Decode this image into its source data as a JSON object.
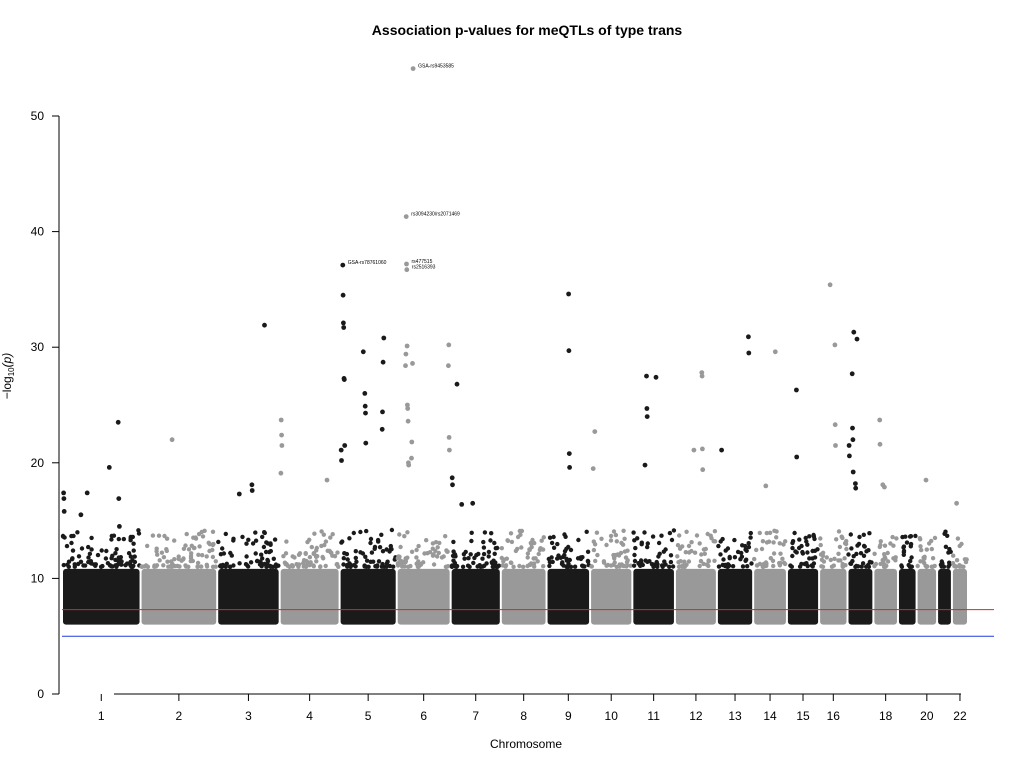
{
  "chart_data": {
    "type": "scatter",
    "title": "Association p-values for meQTLs of type trans",
    "xlabel": "Chromosome",
    "ylabel": "−log",
    "ylabel_sub": "10",
    "ylabel_suffix": "(p)",
    "ylim": [
      0,
      50
    ],
    "y_ticks": [
      0,
      10,
      20,
      30,
      40,
      50
    ],
    "x_tick_labels": [
      "1",
      "2",
      "3",
      "4",
      "5",
      "6",
      "7",
      "8",
      "9",
      "10",
      "11",
      "12",
      "13",
      "14",
      "15",
      "16",
      "18",
      "20",
      "22"
    ],
    "chromosomes": [
      {
        "chr": "1",
        "start": 0,
        "end": 249
      },
      {
        "chr": "2",
        "start": 249,
        "end": 492
      },
      {
        "chr": "3",
        "start": 492,
        "end": 690
      },
      {
        "chr": "4",
        "start": 690,
        "end": 880
      },
      {
        "chr": "5",
        "start": 880,
        "end": 1061
      },
      {
        "chr": "6",
        "start": 1061,
        "end": 1232
      },
      {
        "chr": "7",
        "start": 1232,
        "end": 1391
      },
      {
        "chr": "8",
        "start": 1391,
        "end": 1536
      },
      {
        "chr": "9",
        "start": 1536,
        "end": 1674
      },
      {
        "chr": "10",
        "start": 1674,
        "end": 1808
      },
      {
        "chr": "11",
        "start": 1808,
        "end": 1943
      },
      {
        "chr": "12",
        "start": 1943,
        "end": 2076
      },
      {
        "chr": "13",
        "start": 2076,
        "end": 2191
      },
      {
        "chr": "14",
        "start": 2191,
        "end": 2298
      },
      {
        "chr": "15",
        "start": 2298,
        "end": 2400
      },
      {
        "chr": "16",
        "start": 2400,
        "end": 2490
      },
      {
        "chr": "17",
        "start": 2490,
        "end": 2572
      },
      {
        "chr": "18",
        "start": 2572,
        "end": 2650
      },
      {
        "chr": "19",
        "start": 2650,
        "end": 2709
      },
      {
        "chr": "20",
        "start": 2709,
        "end": 2774
      },
      {
        "chr": "21",
        "start": 2774,
        "end": 2821
      },
      {
        "chr": "22",
        "start": 2821,
        "end": 2872
      }
    ],
    "bulk_ymin": 6,
    "bulk_ymax": 11,
    "colors": [
      "#1a1a1a",
      "#999999"
    ],
    "threshold_lines": [
      {
        "name": "genome-wide",
        "y": 7.3,
        "color": "#d62728"
      },
      {
        "name": "suggestive",
        "y": 5.0,
        "color": "#1f3fe0"
      }
    ],
    "top_hits": [
      {
        "chr": "1",
        "pos": 5,
        "p": 17.4
      },
      {
        "chr": "1",
        "pos": 6,
        "p": 16.9
      },
      {
        "chr": "1",
        "pos": 7,
        "p": 15.8
      },
      {
        "chr": "1",
        "pos": 60,
        "p": 15.5
      },
      {
        "chr": "1",
        "pos": 80,
        "p": 17.4
      },
      {
        "chr": "1",
        "pos": 150,
        "p": 19.6
      },
      {
        "chr": "1",
        "pos": 178,
        "p": 23.5
      },
      {
        "chr": "1",
        "pos": 180,
        "p": 16.9
      },
      {
        "chr": "1",
        "pos": 182,
        "p": 14.5
      },
      {
        "chr": "2",
        "pos": 100,
        "p": 22.0
      },
      {
        "chr": "3",
        "pos": 70,
        "p": 17.3
      },
      {
        "chr": "3",
        "pos": 110,
        "p": 18.1
      },
      {
        "chr": "3",
        "pos": 111,
        "p": 17.6
      },
      {
        "chr": "3",
        "pos": 150,
        "p": 31.9
      },
      {
        "chr": "4",
        "pos": 5,
        "p": 23.7
      },
      {
        "chr": "4",
        "pos": 6,
        "p": 22.4
      },
      {
        "chr": "4",
        "pos": 7,
        "p": 21.5
      },
      {
        "chr": "4",
        "pos": 4,
        "p": 19.1
      },
      {
        "chr": "4",
        "pos": 150,
        "p": 18.5
      },
      {
        "chr": "5",
        "pos": 10,
        "p": 37.1
      },
      {
        "chr": "5",
        "pos": 11,
        "p": 34.5
      },
      {
        "chr": "5",
        "pos": 12,
        "p": 32.1
      },
      {
        "chr": "5",
        "pos": 13,
        "p": 31.7
      },
      {
        "chr": "5",
        "pos": 14,
        "p": 27.3
      },
      {
        "chr": "5",
        "pos": 15,
        "p": 27.2
      },
      {
        "chr": "5",
        "pos": 16,
        "p": 21.5
      },
      {
        "chr": "5",
        "pos": 5,
        "p": 21.1
      },
      {
        "chr": "5",
        "pos": 6,
        "p": 20.2
      },
      {
        "chr": "5",
        "pos": 75,
        "p": 29.6
      },
      {
        "chr": "5",
        "pos": 80,
        "p": 26.0
      },
      {
        "chr": "5",
        "pos": 81,
        "p": 24.9
      },
      {
        "chr": "5",
        "pos": 82,
        "p": 24.3
      },
      {
        "chr": "5",
        "pos": 83,
        "p": 21.7
      },
      {
        "chr": "5",
        "pos": 140,
        "p": 30.8
      },
      {
        "chr": "5",
        "pos": 138,
        "p": 28.7
      },
      {
        "chr": "5",
        "pos": 136,
        "p": 24.4
      },
      {
        "chr": "5",
        "pos": 135,
        "p": 22.9
      },
      {
        "chr": "6",
        "pos": 30,
        "p": 41.3
      },
      {
        "chr": "6",
        "pos": 31,
        "p": 37.2
      },
      {
        "chr": "6",
        "pos": 32,
        "p": 36.7
      },
      {
        "chr": "6",
        "pos": 33,
        "p": 30.1
      },
      {
        "chr": "6",
        "pos": 29,
        "p": 29.4
      },
      {
        "chr": "6",
        "pos": 28,
        "p": 28.4
      },
      {
        "chr": "6",
        "pos": 34,
        "p": 25.0
      },
      {
        "chr": "6",
        "pos": 35,
        "p": 24.7
      },
      {
        "chr": "6",
        "pos": 36,
        "p": 23.6
      },
      {
        "chr": "6",
        "pos": 37,
        "p": 20.0
      },
      {
        "chr": "6",
        "pos": 38,
        "p": 19.8
      },
      {
        "chr": "6",
        "pos": 52,
        "p": 54.1
      },
      {
        "chr": "6",
        "pos": 50,
        "p": 28.6
      },
      {
        "chr": "6",
        "pos": 48,
        "p": 21.8
      },
      {
        "chr": "6",
        "pos": 47,
        "p": 20.4
      },
      {
        "chr": "6",
        "pos": 165,
        "p": 30.2
      },
      {
        "chr": "6",
        "pos": 164,
        "p": 28.4
      },
      {
        "chr": "6",
        "pos": 166,
        "p": 22.2
      },
      {
        "chr": "6",
        "pos": 167,
        "p": 21.1
      },
      {
        "chr": "7",
        "pos": 20,
        "p": 26.8
      },
      {
        "chr": "7",
        "pos": 5,
        "p": 18.7
      },
      {
        "chr": "7",
        "pos": 6,
        "p": 18.1
      },
      {
        "chr": "7",
        "pos": 35,
        "p": 16.4
      },
      {
        "chr": "7",
        "pos": 70,
        "p": 16.5
      },
      {
        "chr": "9",
        "pos": 70,
        "p": 34.6
      },
      {
        "chr": "9",
        "pos": 71,
        "p": 29.7
      },
      {
        "chr": "9",
        "pos": 72,
        "p": 20.8
      },
      {
        "chr": "9",
        "pos": 73,
        "p": 19.6
      },
      {
        "chr": "10",
        "pos": 15,
        "p": 22.7
      },
      {
        "chr": "10",
        "pos": 10,
        "p": 19.5
      },
      {
        "chr": "11",
        "pos": 45,
        "p": 27.5
      },
      {
        "chr": "11",
        "pos": 46,
        "p": 24.7
      },
      {
        "chr": "11",
        "pos": 47,
        "p": 24.0
      },
      {
        "chr": "11",
        "pos": 40,
        "p": 19.8
      },
      {
        "chr": "11",
        "pos": 75,
        "p": 27.4
      },
      {
        "chr": "12",
        "pos": 85,
        "p": 27.8
      },
      {
        "chr": "12",
        "pos": 86,
        "p": 27.5
      },
      {
        "chr": "12",
        "pos": 87,
        "p": 21.2
      },
      {
        "chr": "12",
        "pos": 88,
        "p": 19.4
      },
      {
        "chr": "12",
        "pos": 60,
        "p": 21.1
      },
      {
        "chr": "13",
        "pos": 15,
        "p": 21.1
      },
      {
        "chr": "13",
        "pos": 100,
        "p": 30.9
      },
      {
        "chr": "13",
        "pos": 101,
        "p": 29.5
      },
      {
        "chr": "14",
        "pos": 70,
        "p": 29.6
      },
      {
        "chr": "14",
        "pos": 40,
        "p": 18.0
      },
      {
        "chr": "15",
        "pos": 30,
        "p": 26.3
      },
      {
        "chr": "15",
        "pos": 31,
        "p": 20.5
      },
      {
        "chr": "16",
        "pos": 35,
        "p": 35.4
      },
      {
        "chr": "16",
        "pos": 50,
        "p": 30.2
      },
      {
        "chr": "16",
        "pos": 51,
        "p": 23.3
      },
      {
        "chr": "16",
        "pos": 52,
        "p": 21.5
      },
      {
        "chr": "17",
        "pos": 20,
        "p": 31.3
      },
      {
        "chr": "17",
        "pos": 30,
        "p": 30.7
      },
      {
        "chr": "17",
        "pos": 15,
        "p": 27.7
      },
      {
        "chr": "17",
        "pos": 16,
        "p": 23.0
      },
      {
        "chr": "17",
        "pos": 17,
        "p": 22.0
      },
      {
        "chr": "17",
        "pos": 5,
        "p": 21.5
      },
      {
        "chr": "17",
        "pos": 6,
        "p": 20.6
      },
      {
        "chr": "17",
        "pos": 18,
        "p": 19.2
      },
      {
        "chr": "17",
        "pos": 25,
        "p": 18.2
      },
      {
        "chr": "17",
        "pos": 26,
        "p": 17.8
      },
      {
        "chr": "18",
        "pos": 20,
        "p": 23.7
      },
      {
        "chr": "18",
        "pos": 21,
        "p": 21.6
      },
      {
        "chr": "18",
        "pos": 30,
        "p": 18.1
      },
      {
        "chr": "18",
        "pos": 35,
        "p": 17.9
      },
      {
        "chr": "20",
        "pos": 30,
        "p": 18.5
      },
      {
        "chr": "22",
        "pos": 15,
        "p": 16.5
      }
    ],
    "annotations": [
      {
        "text": "GSA-rs9453585",
        "chr": "6",
        "pos": 52,
        "p": 54.1
      },
      {
        "text": "rs3094230/rs2071469",
        "chr": "6",
        "pos": 30,
        "p": 41.3
      },
      {
        "text": "GSA-rs78761060",
        "chr": "5",
        "pos": 10,
        "p": 37.1
      },
      {
        "text": "rs477515",
        "chr": "6",
        "pos": 31,
        "p": 37.2
      },
      {
        "text": "rs2516393",
        "chr": "6",
        "pos": 32,
        "p": 36.7
      }
    ]
  }
}
